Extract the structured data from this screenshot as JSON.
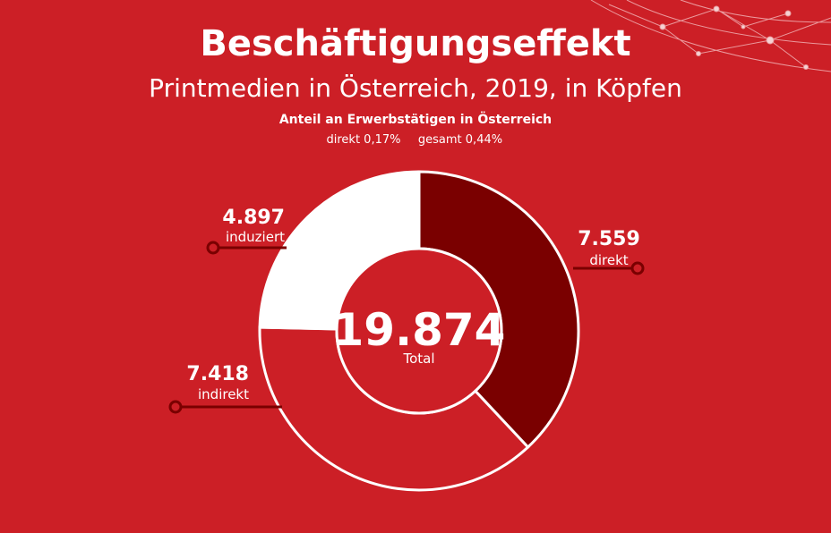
{
  "chart_data": {
    "type": "donut",
    "title": "Beschäftigungseffekt",
    "subtitle": "Printmedien in Österreich, 2019, in Köpfen",
    "note_title": "Anteil an Erwerbstätigen in Österreich",
    "notes": [
      "direkt 0,17%",
      "gesamt 0,44%"
    ],
    "categories": [
      "direkt",
      "indirekt",
      "induziert"
    ],
    "values": [
      7559,
      7418,
      4897
    ],
    "value_labels": [
      "7.559",
      "7.418",
      "4.897"
    ],
    "colors": [
      "#7a0000",
      "#cc1f26",
      "#ffffff"
    ],
    "total": 19874,
    "total_label": "19.874",
    "total_caption": "Total"
  }
}
